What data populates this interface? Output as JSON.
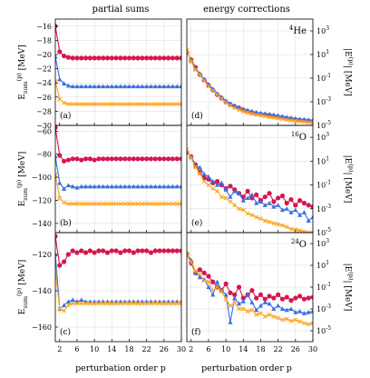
{
  "figure": {
    "left_title": "partial sums",
    "right_title": "energy corrections",
    "xlabel": "perturbation order p",
    "ylabel_left": "E_sum^(p) [MeV]",
    "ylabel_right": "|E^(p)| [MeV]",
    "x_ticks": [
      2,
      6,
      10,
      14,
      18,
      22,
      26,
      30
    ],
    "colors": {
      "series_a": "#d6164d",
      "series_b": "#3a6fe0",
      "series_c": "#ffa41c",
      "grid": "#d9d9d9"
    }
  },
  "chart_data": [
    {
      "type": "line",
      "panel": "(a)",
      "ylabel": "E_sum^(p) [MeV]",
      "xlabel": "",
      "xlim": [
        1,
        30
      ],
      "ylim": [
        -30,
        -15
      ],
      "y_ticks": [
        -16,
        -18,
        -20,
        -22,
        -24,
        -26,
        -28,
        -30
      ],
      "grid": true,
      "x": [
        1,
        2,
        3,
        4,
        5,
        6,
        7,
        8,
        9,
        10,
        11,
        12,
        13,
        14,
        15,
        16,
        17,
        18,
        19,
        20,
        21,
        22,
        23,
        24,
        25,
        26,
        27,
        28,
        29,
        30
      ],
      "series": [
        {
          "marker": "circle",
          "color": "#d6164d",
          "values": [
            -16,
            -19.6,
            -20.2,
            -20.4,
            -20.5,
            -20.5,
            -20.5,
            -20.5,
            -20.5,
            -20.5,
            -20.5,
            -20.5,
            -20.5,
            -20.5,
            -20.5,
            -20.5,
            -20.5,
            -20.5,
            -20.5,
            -20.5,
            -20.5,
            -20.5,
            -20.5,
            -20.5,
            -20.5,
            -20.5,
            -20.5,
            -20.5,
            -20.5,
            -20.5
          ]
        },
        {
          "marker": "triangle",
          "color": "#3a6fe0",
          "values": [
            -20.3,
            -23.5,
            -24.1,
            -24.4,
            -24.5,
            -24.5,
            -24.5,
            -24.5,
            -24.5,
            -24.5,
            -24.5,
            -24.5,
            -24.5,
            -24.5,
            -24.5,
            -24.5,
            -24.5,
            -24.5,
            -24.5,
            -24.5,
            -24.5,
            -24.5,
            -24.5,
            -24.5,
            -24.5,
            -24.5,
            -24.5,
            -24.5,
            -24.5,
            -24.5
          ]
        },
        {
          "marker": "x",
          "color": "#ffa41c",
          "values": [
            -23.8,
            -26.3,
            -26.8,
            -27,
            -27,
            -27,
            -27,
            -27,
            -27,
            -27,
            -27,
            -27,
            -27,
            -27,
            -27,
            -27,
            -27,
            -27,
            -27,
            -27,
            -27,
            -27,
            -27,
            -27,
            -27,
            -27,
            -27,
            -27,
            -27,
            -27
          ]
        }
      ]
    },
    {
      "type": "line",
      "panel": "(b)",
      "ylabel": "E_sum^(p) [MeV]",
      "xlabel": "",
      "xlim": [
        1,
        30
      ],
      "ylim": [
        -148,
        -55
      ],
      "y_ticks": [
        -60,
        -80,
        -100,
        -120,
        -140
      ],
      "grid": true,
      "x": [
        1,
        2,
        3,
        4,
        5,
        6,
        7,
        8,
        9,
        10,
        11,
        12,
        13,
        14,
        15,
        16,
        17,
        18,
        19,
        20,
        21,
        22,
        23,
        24,
        25,
        26,
        27,
        28,
        29,
        30
      ],
      "series": [
        {
          "marker": "circle",
          "color": "#d6164d",
          "values": [
            -57,
            -81,
            -86,
            -85,
            -84,
            -84,
            -85,
            -84,
            -84,
            -85,
            -84,
            -84,
            -84,
            -84,
            -84,
            -84,
            -84,
            -84,
            -84,
            -84,
            -84,
            -84,
            -84,
            -84,
            -84,
            -84,
            -84,
            -84,
            -84,
            -84
          ]
        },
        {
          "marker": "triangle",
          "color": "#3a6fe0",
          "values": [
            -82,
            -105,
            -110,
            -107,
            -108,
            -109,
            -108,
            -108,
            -108,
            -108,
            -108,
            -108,
            -108,
            -108,
            -108,
            -108,
            -108,
            -108,
            -108,
            -108,
            -108,
            -108,
            -108,
            -108,
            -108,
            -108,
            -108,
            -108,
            -108,
            -108
          ]
        },
        {
          "marker": "x",
          "color": "#ffa41c",
          "values": [
            -98,
            -118,
            -122,
            -123,
            -123,
            -123,
            -123,
            -123,
            -123,
            -123,
            -123,
            -123,
            -123,
            -123,
            -123,
            -123,
            -123,
            -123,
            -123,
            -123,
            -123,
            -123,
            -123,
            -123,
            -123,
            -123,
            -123,
            -123,
            -123,
            -123
          ]
        }
      ]
    },
    {
      "type": "line",
      "panel": "(c)",
      "ylabel": "E_sum^(p) [MeV]",
      "xlabel": "perturbation order p",
      "xlim": [
        1,
        30
      ],
      "ylim": [
        -168,
        -108
      ],
      "y_ticks": [
        -120,
        -140,
        -160
      ],
      "grid": true,
      "x": [
        1,
        2,
        3,
        4,
        5,
        6,
        7,
        8,
        9,
        10,
        11,
        12,
        13,
        14,
        15,
        16,
        17,
        18,
        19,
        20,
        21,
        22,
        23,
        24,
        25,
        26,
        27,
        28,
        29,
        30
      ],
      "series": [
        {
          "marker": "circle",
          "color": "#d6164d",
          "values": [
            -110,
            -126,
            -124,
            -120,
            -118,
            -119,
            -118,
            -119,
            -118,
            -119,
            -118,
            -118,
            -119,
            -118,
            -118,
            -119,
            -118,
            -118,
            -119,
            -118,
            -118,
            -118,
            -119,
            -118,
            -118,
            -118,
            -118,
            -118,
            -118,
            -118
          ]
        },
        {
          "marker": "triangle",
          "color": "#3a6fe0",
          "values": [
            -120,
            -150,
            -148,
            -146,
            -145,
            -146,
            -145,
            -146,
            -146,
            -146,
            -146,
            -146,
            -146,
            -146,
            -146,
            -146,
            -146,
            -146,
            -146,
            -146,
            -146,
            -146,
            -146,
            -146,
            -146,
            -146,
            -146,
            -146,
            -146,
            -146
          ]
        },
        {
          "marker": "x",
          "color": "#ffa41c",
          "values": [
            -129,
            -150,
            -151,
            -148,
            -147,
            -147,
            -147,
            -147,
            -147,
            -147,
            -147,
            -147,
            -147,
            -147,
            -147,
            -147,
            -147,
            -147,
            -147,
            -147,
            -147,
            -147,
            -147,
            -147,
            -147,
            -147,
            -147,
            -147,
            -147,
            -147
          ]
        }
      ]
    },
    {
      "type": "line",
      "panel": "(d)",
      "annotation": "4He",
      "ylabel": "|E^(p)| [MeV]",
      "xlabel": "",
      "yscale": "log",
      "xlim": [
        1,
        30
      ],
      "ylim": [
        1e-05,
        10000.0
      ],
      "y_ticks": [
        "10^3",
        "10^1",
        "10^-1",
        "10^-3",
        "10^-5"
      ],
      "grid": true,
      "x": [
        1,
        2,
        3,
        4,
        5,
        6,
        7,
        8,
        9,
        10,
        11,
        12,
        13,
        14,
        15,
        16,
        17,
        18,
        19,
        20,
        21,
        22,
        23,
        24,
        25,
        26,
        27,
        28,
        29,
        30
      ],
      "series": [
        {
          "marker": "circle",
          "color": "#d6164d",
          "values": [
            16,
            3.6,
            0.8,
            0.2,
            0.07,
            0.025,
            0.01,
            0.004,
            0.002,
            0.001,
            0.0006,
            0.0004,
            0.0003,
            0.0002,
            0.00015,
            0.00012,
            0.0001,
            9e-05,
            8e-05,
            7e-05,
            6e-05,
            5e-05,
            4.5e-05,
            4e-05,
            3.5e-05,
            3e-05,
            2.8e-05,
            2.6e-05,
            2.4e-05,
            2.2e-05
          ]
        },
        {
          "marker": "triangle",
          "color": "#3a6fe0",
          "values": [
            20,
            3.2,
            0.6,
            0.25,
            0.08,
            0.03,
            0.012,
            0.005,
            0.0025,
            0.0012,
            0.0007,
            0.0005,
            0.00035,
            0.00025,
            0.0002,
            0.00016,
            0.00013,
            0.00011,
            0.0001,
            9e-05,
            8e-05,
            7e-05,
            6e-05,
            5e-05,
            4.5e-05,
            4e-05,
            3.5e-05,
            3.2e-05,
            3e-05,
            2.8e-05
          ]
        },
        {
          "marker": "x",
          "color": "#ffa41c",
          "values": [
            24,
            2.5,
            0.5,
            0.2,
            0.06,
            0.02,
            0.009,
            0.004,
            0.0018,
            0.0009,
            0.0005,
            0.0003,
            0.0002,
            0.00015,
            0.00012,
            0.0001,
            8e-05,
            7e-05,
            6e-05,
            5e-05,
            4.5e-05,
            4e-05,
            3.5e-05,
            3e-05,
            2.7e-05,
            2.4e-05,
            2.2e-05,
            2e-05,
            1.8e-05,
            1.7e-05
          ]
        }
      ]
    },
    {
      "type": "line",
      "panel": "(e)",
      "annotation": "16O",
      "ylabel": "|E^(p)| [MeV]",
      "xlabel": "",
      "yscale": "log",
      "xlim": [
        1,
        30
      ],
      "ylim": [
        1e-05,
        10000.0
      ],
      "y_ticks": [
        "10^3",
        "10^1",
        "10^-1",
        "10^-3",
        "10^-5"
      ],
      "grid": true,
      "x": [
        1,
        2,
        3,
        4,
        5,
        6,
        7,
        8,
        9,
        10,
        11,
        12,
        13,
        14,
        15,
        16,
        17,
        18,
        19,
        20,
        21,
        22,
        23,
        24,
        25,
        26,
        27,
        28,
        29,
        30
      ],
      "series": [
        {
          "marker": "circle",
          "color": "#d6164d",
          "values": [
            57,
            24,
            5,
            1.2,
            0.4,
            0.3,
            0.15,
            0.2,
            0.1,
            0.05,
            0.08,
            0.04,
            0.02,
            0.01,
            0.03,
            0.008,
            0.015,
            0.005,
            0.01,
            0.02,
            0.004,
            0.008,
            0.012,
            0.003,
            0.006,
            0.002,
            0.005,
            0.003,
            0.002,
            0.0015
          ]
        },
        {
          "marker": "triangle",
          "color": "#3a6fe0",
          "values": [
            80,
            23,
            4,
            3,
            0.8,
            0.5,
            0.2,
            0.1,
            0.15,
            0.04,
            0.01,
            0.03,
            0.02,
            0.005,
            0.008,
            0.015,
            0.003,
            0.004,
            0.002,
            0.003,
            0.0015,
            0.002,
            0.0008,
            0.001,
            0.0005,
            0.0008,
            0.0003,
            0.0005,
            0.0001,
            0.0002
          ]
        },
        {
          "marker": "x",
          "color": "#ffa41c",
          "values": [
            96,
            18,
            3,
            0.9,
            0.2,
            0.1,
            0.05,
            0.03,
            0.01,
            0.008,
            0.004,
            0.002,
            0.001,
            0.0008,
            0.0004,
            0.0003,
            0.0002,
            0.00015,
            0.0001,
            8e-05,
            6e-05,
            5e-05,
            4e-05,
            3e-05,
            2e-05,
            1.8e-05,
            1.5e-05,
            1.2e-05,
            1e-05,
            9e-06
          ]
        }
      ]
    },
    {
      "type": "line",
      "panel": "(f)",
      "annotation": "24O",
      "ylabel": "|E^(p)| [MeV]",
      "xlabel": "perturbation order p",
      "yscale": "log",
      "xlim": [
        1,
        30
      ],
      "ylim": [
        1e-06,
        10000.0
      ],
      "y_ticks": [
        "10^3",
        "10^1",
        "10^-1",
        "10^-3",
        "10^-5"
      ],
      "grid": true,
      "x": [
        1,
        2,
        3,
        4,
        5,
        6,
        7,
        8,
        9,
        10,
        11,
        12,
        13,
        14,
        15,
        16,
        17,
        18,
        19,
        20,
        21,
        22,
        23,
        24,
        25,
        26,
        27,
        28,
        29,
        30
      ],
      "series": [
        {
          "marker": "circle",
          "color": "#d6164d",
          "values": [
            110,
            16,
            2,
            4,
            2,
            1,
            0.3,
            0.1,
            0.05,
            0.2,
            0.03,
            0.02,
            0.1,
            0.01,
            0.02,
            0.05,
            0.01,
            0.02,
            0.008,
            0.015,
            0.01,
            0.02,
            0.008,
            0.012,
            0.006,
            0.01,
            0.015,
            0.008,
            0.01,
            0.012
          ]
        },
        {
          "marker": "triangle",
          "color": "#3a6fe0",
          "values": [
            120,
            30,
            2,
            0.8,
            0.5,
            0.1,
            0.02,
            0.3,
            0.05,
            0.02,
            6e-05,
            0.01,
            0.003,
            0.005,
            0.02,
            0.004,
            0.0008,
            0.002,
            0.004,
            0.003,
            0.001,
            0.002,
            0.001,
            0.0008,
            0.001,
            0.0005,
            0.0006,
            0.0004,
            0.0005,
            0.0006
          ]
        },
        {
          "marker": "x",
          "color": "#ffa41c",
          "values": [
            130,
            20,
            3,
            1.5,
            0.4,
            0.3,
            0.05,
            0.1,
            0.04,
            0.008,
            0.002,
            0.004,
            0.001,
            0.001,
            0.0006,
            0.0008,
            0.0003,
            0.0004,
            0.0002,
            0.0003,
            0.0002,
            0.00015,
            0.0001,
            0.00012,
            8e-05,
            0.0001,
            7e-05,
            5e-05,
            4e-05,
            5e-05
          ]
        }
      ]
    }
  ]
}
